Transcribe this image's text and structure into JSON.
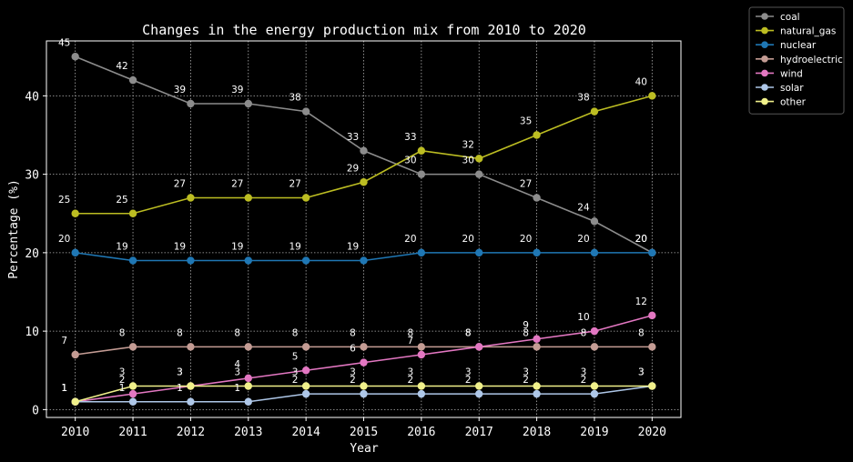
{
  "chart_data": {
    "type": "line",
    "title": "Changes in the energy production mix from 2010 to 2020",
    "xlabel": "Year",
    "ylabel": "Percentage (%)",
    "x": [
      "2010",
      "2011",
      "2012",
      "2013",
      "2014",
      "2015",
      "2016",
      "2017",
      "2018",
      "2019",
      "2020"
    ],
    "xlim": [
      2009.5,
      2020.5
    ],
    "ylim": [
      -1,
      47
    ],
    "yticks": [
      0,
      10,
      20,
      30,
      40
    ],
    "grid": true,
    "legend_placement": "outside-top-right",
    "series": [
      {
        "name": "coal",
        "color": "#8c8c8c",
        "values": [
          45,
          42,
          39,
          39,
          38,
          33,
          30,
          30,
          27,
          24,
          20
        ]
      },
      {
        "name": "natural_gas",
        "color": "#bcbd22",
        "values": [
          25,
          25,
          27,
          27,
          27,
          29,
          33,
          32,
          35,
          38,
          40
        ]
      },
      {
        "name": "nuclear",
        "color": "#1f77b4",
        "values": [
          20,
          19,
          19,
          19,
          19,
          19,
          20,
          20,
          20,
          20,
          20
        ]
      },
      {
        "name": "hydroelectric",
        "color": "#c49c94",
        "values": [
          7,
          8,
          8,
          8,
          8,
          8,
          8,
          8,
          8,
          8,
          8
        ]
      },
      {
        "name": "wind",
        "color": "#e377c2",
        "values": [
          1,
          2,
          3,
          4,
          5,
          6,
          7,
          8,
          9,
          10,
          12
        ]
      },
      {
        "name": "solar",
        "color": "#aec7e8",
        "values": [
          1,
          1,
          1,
          1,
          2,
          2,
          2,
          2,
          2,
          2,
          3
        ]
      },
      {
        "name": "other",
        "color": "#f0f08a",
        "values": [
          1,
          3,
          3,
          3,
          3,
          3,
          3,
          3,
          3,
          3,
          3
        ]
      }
    ]
  }
}
